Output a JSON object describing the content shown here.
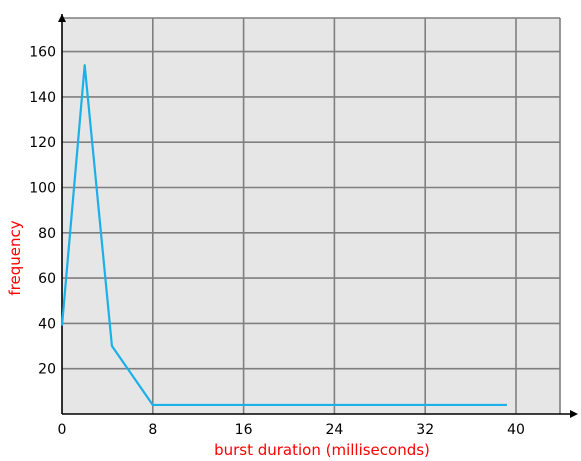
{
  "chart_data": {
    "type": "line",
    "title": "",
    "xlabel": "burst duration (milliseconds)",
    "ylabel": "frequency",
    "xlim": [
      0,
      44
    ],
    "ylim": [
      0,
      175
    ],
    "xticks": [
      0,
      8,
      16,
      24,
      32,
      40
    ],
    "yticks": [
      20,
      40,
      60,
      80,
      100,
      120,
      140,
      160
    ],
    "grid": true,
    "series": [
      {
        "x": [
          0,
          2,
          4.4,
          8,
          39.2
        ],
        "y": [
          39,
          154,
          30,
          4,
          4
        ]
      }
    ]
  },
  "colors": {
    "plot_background": "#e6e6e6",
    "grid": "#7f7f7f",
    "line": "#1ab0e8",
    "axis_title": "#ff0000",
    "axis": "#000000"
  }
}
